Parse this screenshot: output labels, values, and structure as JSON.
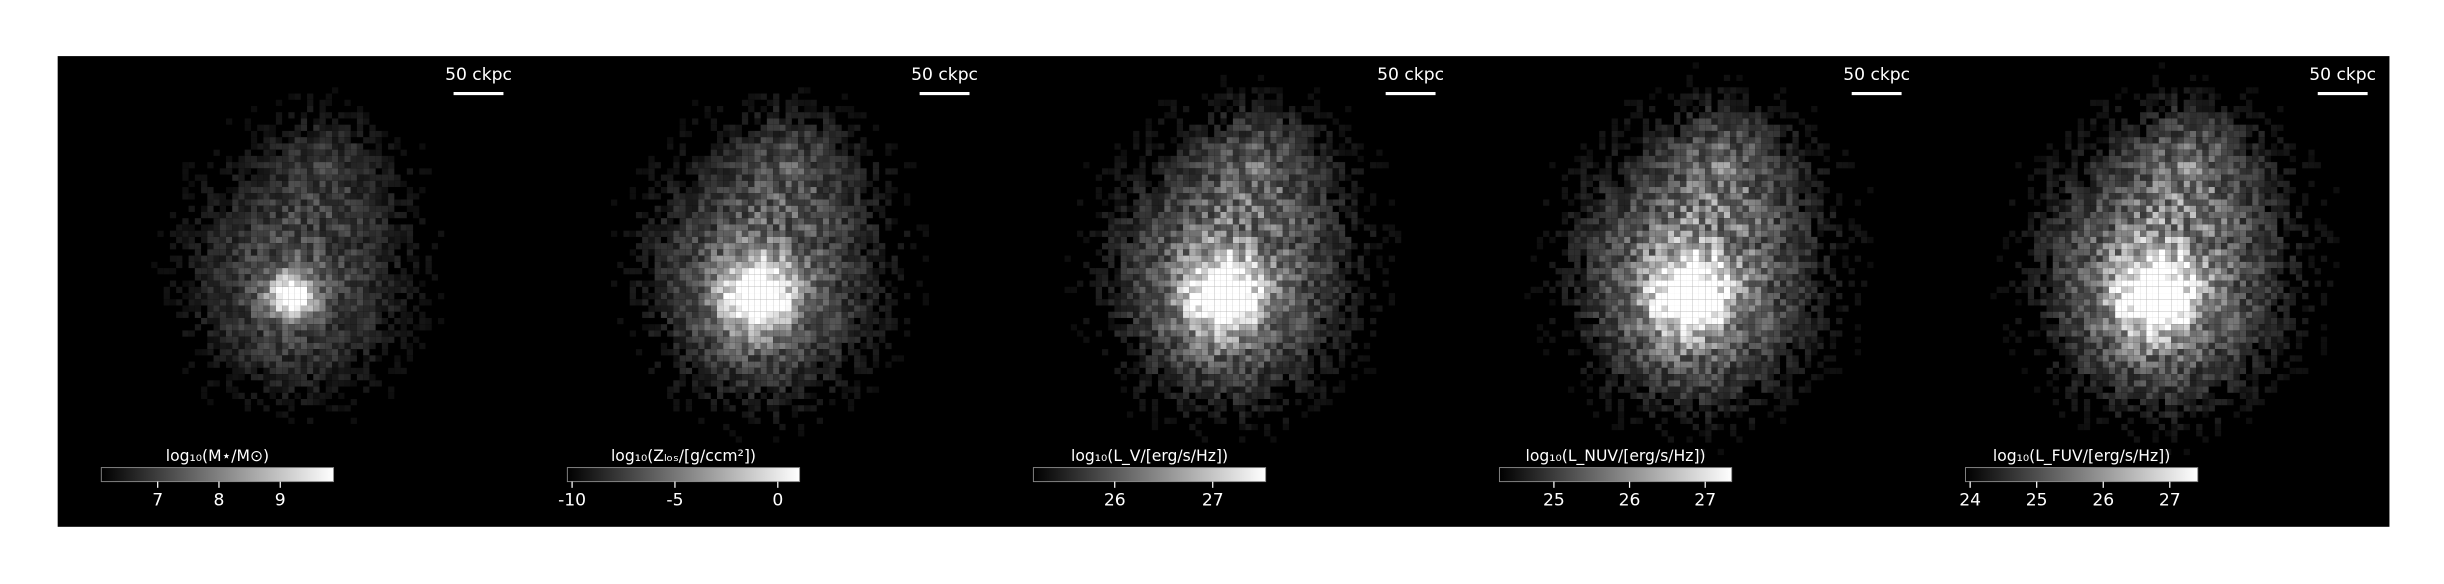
{
  "panels": [
    {
      "scale_label": "50 ckpc",
      "colorbar": {
        "label": "log₁₀(M⋆/M⊙)",
        "lim": [
          6.08,
          9.87
        ],
        "ticks": [
          7,
          8,
          9
        ]
      }
    },
    {
      "scale_label": "50 ckpc",
      "colorbar": {
        "label": "log₁₀(Zₗₒₛ/[g/ccm²])",
        "lim": [
          -10.23,
          1.06
        ],
        "ticks": [
          -10,
          -5,
          0
        ]
      }
    },
    {
      "scale_label": "50 ckpc",
      "colorbar": {
        "label": "log₁₀(L_V/[erg/s/Hz])",
        "lim": [
          25.17,
          27.54
        ],
        "ticks": [
          26,
          27
        ]
      }
    },
    {
      "scale_label": "50 ckpc",
      "colorbar": {
        "label": "log₁₀(L_NUV/[erg/s/Hz])",
        "lim": [
          24.28,
          27.35
        ],
        "ticks": [
          25,
          26,
          27
        ]
      }
    },
    {
      "scale_label": "50 ckpc",
      "colorbar": {
        "label": "log₁₀(L_FUV/[erg/s/Hz])",
        "lim": [
          23.93,
          27.42
        ],
        "ticks": [
          24,
          25,
          26,
          27
        ]
      }
    }
  ]
}
